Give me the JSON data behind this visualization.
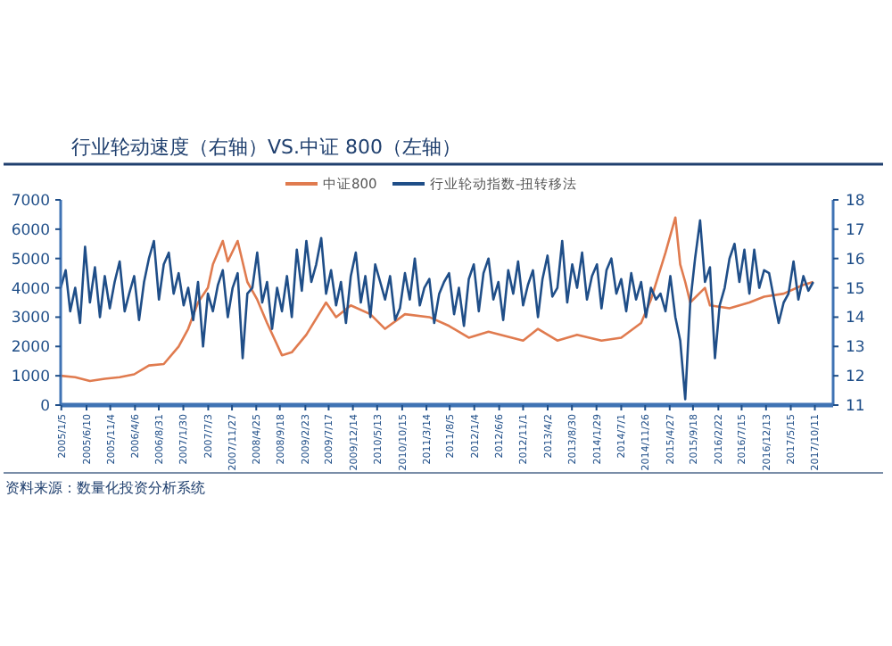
{
  "chart_data": {
    "type": "line",
    "title": "行业轮动速度（右轴）VS.中证 800（左轴）",
    "annotations": [
      "资料来源：数量化投资分析系统"
    ],
    "xlim": [
      "2005-01-01",
      "2018-02-01"
    ],
    "xticks": [
      {
        "value": "2005-01-05",
        "label": "2005/1/5"
      },
      {
        "value": "2005-06-10",
        "label": "2005/6/10"
      },
      {
        "value": "2005-11-04",
        "label": "2005/11/4"
      },
      {
        "value": "2006-04-06",
        "label": "2006/4/6"
      },
      {
        "value": "2006-08-31",
        "label": "2006/8/31"
      },
      {
        "value": "2007-01-30",
        "label": "2007/1/30"
      },
      {
        "value": "2007-07-03",
        "label": "2007/7/3"
      },
      {
        "value": "2007-11-27",
        "label": "2007/11/27"
      },
      {
        "value": "2008-04-25",
        "label": "2008/4/25"
      },
      {
        "value": "2008-09-18",
        "label": "2008/9/18"
      },
      {
        "value": "2009-02-23",
        "label": "2009/2/23"
      },
      {
        "value": "2009-07-17",
        "label": "2009/7/17"
      },
      {
        "value": "2009-12-14",
        "label": "2009/12/14"
      },
      {
        "value": "2010-05-13",
        "label": "2010/5/13"
      },
      {
        "value": "2010-10-15",
        "label": "2010/10/15"
      },
      {
        "value": "2011-03-14",
        "label": "2011/3/14"
      },
      {
        "value": "2011-08-05",
        "label": "2011/8/5"
      },
      {
        "value": "2012-01-04",
        "label": "2012/1/4"
      },
      {
        "value": "2012-06-06",
        "label": "2012/6/6"
      },
      {
        "value": "2012-11-01",
        "label": "2012/11/1"
      },
      {
        "value": "2013-04-02",
        "label": "2013/4/2"
      },
      {
        "value": "2013-08-30",
        "label": "2013/8/30"
      },
      {
        "value": "2014-01-29",
        "label": "2014/1/29"
      },
      {
        "value": "2014-07-01",
        "label": "2014/7/1"
      },
      {
        "value": "2014-11-26",
        "label": "2014/11/26"
      },
      {
        "value": "2015-04-27",
        "label": "2015/4/27"
      },
      {
        "value": "2015-09-18",
        "label": "2015/9/18"
      },
      {
        "value": "2016-02-22",
        "label": "2016/2/22"
      },
      {
        "value": "2016-07-15",
        "label": "2016/7/15"
      },
      {
        "value": "2016-12-13",
        "label": "2016/12/13"
      },
      {
        "value": "2017-05-15",
        "label": "2017/5/15"
      },
      {
        "value": "2017-10-11",
        "label": "2017/10/11"
      }
    ],
    "ylim": [
      0,
      7000
    ],
    "yticks": [
      0,
      1000,
      2000,
      3000,
      4000,
      5000,
      6000,
      7000
    ],
    "y2lim": [
      11,
      18
    ],
    "y2ticks": [
      11,
      12,
      13,
      14,
      15,
      16,
      17,
      18
    ],
    "legend": "top right",
    "line_style": "solid",
    "series": [
      {
        "name": "中证800",
        "color": "#e07b4f",
        "x": [
          "2005-01",
          "2005-04",
          "2005-07",
          "2005-10",
          "2006-01",
          "2006-04",
          "2006-07",
          "2006-10",
          "2007-01",
          "2007-03",
          "2007-05",
          "2007-07",
          "2007-08",
          "2007-10",
          "2007-11",
          "2008-01",
          "2008-03",
          "2008-05",
          "2008-07",
          "2008-10",
          "2008-12",
          "2009-03",
          "2009-07",
          "2009-09",
          "2009-12",
          "2010-04",
          "2010-07",
          "2010-11",
          "2011-04",
          "2011-08",
          "2011-12",
          "2012-04",
          "2012-11",
          "2013-02",
          "2013-06",
          "2013-10",
          "2014-03",
          "2014-07",
          "2014-11",
          "2015-01",
          "2015-04",
          "2015-06",
          "2015-07",
          "2015-08",
          "2015-09",
          "2015-12",
          "2016-01",
          "2016-05",
          "2016-09",
          "2016-12",
          "2017-04",
          "2017-08",
          "2017-10"
        ],
        "values": [
          1000,
          950,
          820,
          900,
          950,
          1050,
          1350,
          1400,
          2000,
          2600,
          3500,
          4000,
          4800,
          5600,
          4900,
          5600,
          4200,
          3600,
          2800,
          1700,
          1800,
          2400,
          3500,
          3000,
          3400,
          3100,
          2600,
          3100,
          3000,
          2700,
          2300,
          2500,
          2200,
          2600,
          2200,
          2400,
          2200,
          2300,
          2800,
          3600,
          5200,
          6400,
          4800,
          4200,
          3500,
          4000,
          3400,
          3300,
          3500,
          3700,
          3800,
          4100,
          4200
        ]
      },
      {
        "name": "行业轮动指数-扭转移法",
        "color": "#1f4e88",
        "axis": "y2",
        "x": [
          "2005-01",
          "2005-02",
          "2005-03",
          "2005-04",
          "2005-05",
          "2005-06",
          "2005-07",
          "2005-08",
          "2005-09",
          "2005-10",
          "2005-11",
          "2005-12",
          "2006-01",
          "2006-02",
          "2006-03",
          "2006-04",
          "2006-05",
          "2006-06",
          "2006-07",
          "2006-08",
          "2006-09",
          "2006-10",
          "2006-11",
          "2006-12",
          "2007-01",
          "2007-02",
          "2007-03",
          "2007-04",
          "2007-05",
          "2007-06",
          "2007-07",
          "2007-08",
          "2007-09",
          "2007-10",
          "2007-11",
          "2007-12",
          "2008-01",
          "2008-02",
          "2008-03",
          "2008-04",
          "2008-05",
          "2008-06",
          "2008-07",
          "2008-08",
          "2008-09",
          "2008-10",
          "2008-11",
          "2008-12",
          "2009-01",
          "2009-02",
          "2009-03",
          "2009-04",
          "2009-05",
          "2009-06",
          "2009-07",
          "2009-08",
          "2009-09",
          "2009-10",
          "2009-11",
          "2009-12",
          "2010-01",
          "2010-02",
          "2010-03",
          "2010-04",
          "2010-05",
          "2010-06",
          "2010-07",
          "2010-08",
          "2010-09",
          "2010-10",
          "2010-11",
          "2010-12",
          "2011-01",
          "2011-02",
          "2011-03",
          "2011-04",
          "2011-05",
          "2011-06",
          "2011-07",
          "2011-08",
          "2011-09",
          "2011-10",
          "2011-11",
          "2011-12",
          "2012-01",
          "2012-02",
          "2012-03",
          "2012-04",
          "2012-05",
          "2012-06",
          "2012-07",
          "2012-08",
          "2012-09",
          "2012-10",
          "2012-11",
          "2012-12",
          "2013-01",
          "2013-02",
          "2013-03",
          "2013-04",
          "2013-05",
          "2013-06",
          "2013-07",
          "2013-08",
          "2013-09",
          "2013-10",
          "2013-11",
          "2013-12",
          "2014-01",
          "2014-02",
          "2014-03",
          "2014-04",
          "2014-05",
          "2014-06",
          "2014-07",
          "2014-08",
          "2014-09",
          "2014-10",
          "2014-11",
          "2014-12",
          "2015-01",
          "2015-02",
          "2015-03",
          "2015-04",
          "2015-05",
          "2015-06",
          "2015-07",
          "2015-08",
          "2015-09",
          "2015-10",
          "2015-11",
          "2015-12",
          "2016-01",
          "2016-02",
          "2016-03",
          "2016-04",
          "2016-05",
          "2016-06",
          "2016-07",
          "2016-08",
          "2016-09",
          "2016-10",
          "2016-11",
          "2016-12",
          "2017-01",
          "2017-02",
          "2017-03",
          "2017-04",
          "2017-05",
          "2017-06",
          "2017-07",
          "2017-08",
          "2017-09",
          "2017-10"
        ],
        "values": [
          15.0,
          15.6,
          14.2,
          15.0,
          13.8,
          16.4,
          14.5,
          15.7,
          14.0,
          15.4,
          14.3,
          15.2,
          15.9,
          14.2,
          14.8,
          15.4,
          13.9,
          15.2,
          16.0,
          16.6,
          14.6,
          15.8,
          16.2,
          14.8,
          15.5,
          14.4,
          15.0,
          13.9,
          15.2,
          13.0,
          14.8,
          14.2,
          15.1,
          15.6,
          14.0,
          15.0,
          15.5,
          12.6,
          14.8,
          15.0,
          16.2,
          14.5,
          15.2,
          13.6,
          15.0,
          14.2,
          15.4,
          14.0,
          16.3,
          14.9,
          16.6,
          15.2,
          15.8,
          16.7,
          14.8,
          15.6,
          14.4,
          15.2,
          13.8,
          15.4,
          16.2,
          14.5,
          15.4,
          14.0,
          15.8,
          15.2,
          14.6,
          15.4,
          13.9,
          14.3,
          15.5,
          14.6,
          16.0,
          14.4,
          15.0,
          15.3,
          13.8,
          14.8,
          15.2,
          15.5,
          14.1,
          15.0,
          13.7,
          15.3,
          15.8,
          14.2,
          15.5,
          16.0,
          14.6,
          15.2,
          13.9,
          15.6,
          14.8,
          15.9,
          14.4,
          15.1,
          15.6,
          14.0,
          15.3,
          16.1,
          14.7,
          15.0,
          16.6,
          14.5,
          15.8,
          15.0,
          16.2,
          14.6,
          15.4,
          15.8,
          14.3,
          15.6,
          16.0,
          14.8,
          15.3,
          14.2,
          15.5,
          14.6,
          15.2,
          14.0,
          15.0,
          14.6,
          14.8,
          14.2,
          15.4,
          14.0,
          13.2,
          11.2,
          14.5,
          16.0,
          17.3,
          15.2,
          15.7,
          12.6,
          14.4,
          15.0,
          16.0,
          16.5,
          15.2,
          16.3,
          14.8,
          16.3,
          15.0,
          15.6,
          15.5,
          14.6,
          13.8,
          14.5,
          14.8,
          15.9,
          14.6,
          15.4,
          14.9,
          15.2
        ]
      }
    ]
  }
}
